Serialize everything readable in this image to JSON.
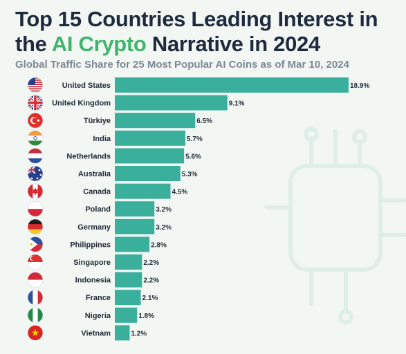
{
  "title_part1": "Top 15 Countries Leading Interest in the ",
  "title_accent": "AI Crypto",
  "title_part2": " Narrative in 2024",
  "subtitle": "Global Traffic Share for 25 Most Popular AI Coins as of Mar 10, 2024",
  "colors": {
    "bar": "#3aaf9c",
    "accent": "#3fb66b",
    "title": "#1e2b3f"
  },
  "chart_data": {
    "type": "bar",
    "orientation": "horizontal",
    "value_suffix": "%",
    "categories": [
      "United States",
      "United Kingdom",
      "Türkiye",
      "India",
      "Netherlands",
      "Australia",
      "Canada",
      "Poland",
      "Germany",
      "Philippines",
      "Singapore",
      "Indonesia",
      "France",
      "Nigeria",
      "Vietnam"
    ],
    "values": [
      18.9,
      9.1,
      6.5,
      5.7,
      5.6,
      5.3,
      4.5,
      3.2,
      3.2,
      2.8,
      2.2,
      2.2,
      2.1,
      1.8,
      1.2
    ],
    "labels": [
      "18.9%",
      "9.1%",
      "6.5%",
      "5.7%",
      "5.6%",
      "5.3%",
      "4.5%",
      "3.2%",
      "3.2%",
      "2.8%",
      "2.2%",
      "2.2%",
      "2.1%",
      "1.8%",
      "1.2%"
    ],
    "flag_icons": [
      "us-flag-icon",
      "uk-flag-icon",
      "turkey-flag-icon",
      "india-flag-icon",
      "netherlands-flag-icon",
      "australia-flag-icon",
      "canada-flag-icon",
      "poland-flag-icon",
      "germany-flag-icon",
      "philippines-flag-icon",
      "singapore-flag-icon",
      "indonesia-flag-icon",
      "france-flag-icon",
      "nigeria-flag-icon",
      "vietnam-flag-icon"
    ],
    "xlim": [
      0,
      18.9
    ],
    "grid": false,
    "legend": "none"
  }
}
